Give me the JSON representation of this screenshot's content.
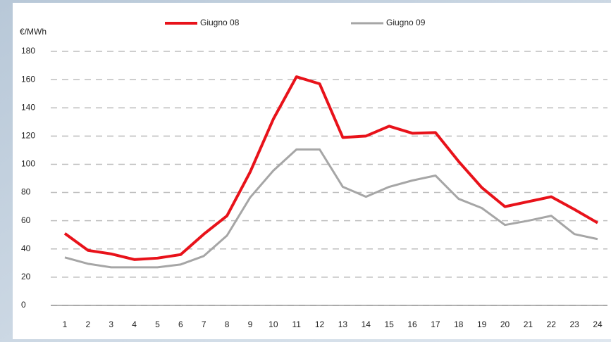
{
  "chart_data": {
    "type": "line",
    "y_label": "€/MWh",
    "categories": [
      "1",
      "2",
      "3",
      "4",
      "5",
      "6",
      "7",
      "8",
      "9",
      "10",
      "11",
      "12",
      "13",
      "14",
      "15",
      "16",
      "17",
      "18",
      "19",
      "20",
      "21",
      "22",
      "23",
      "24"
    ],
    "series": [
      {
        "name": "Giugno 08",
        "color": "#e8121a",
        "values": [
          51,
          39,
          36.5,
          32.5,
          33.5,
          36,
          50.5,
          63.5,
          94.5,
          132,
          162,
          157,
          119,
          120,
          127,
          122,
          122.5,
          102,
          83.5,
          70,
          73.5,
          77,
          68,
          58.5
        ]
      },
      {
        "name": "Giugno 09",
        "color": "#a6a6a6",
        "values": [
          34,
          29.5,
          27,
          27,
          27,
          29,
          35,
          49.5,
          76.5,
          95.5,
          110.5,
          110.5,
          84,
          77,
          84,
          88.5,
          92,
          75.5,
          69,
          57,
          60,
          63.5,
          50.5,
          47
        ]
      }
    ],
    "ylim": [
      0,
      180
    ],
    "yticks": [
      0,
      20,
      40,
      60,
      80,
      100,
      120,
      140,
      160,
      180
    ],
    "grid": true
  }
}
